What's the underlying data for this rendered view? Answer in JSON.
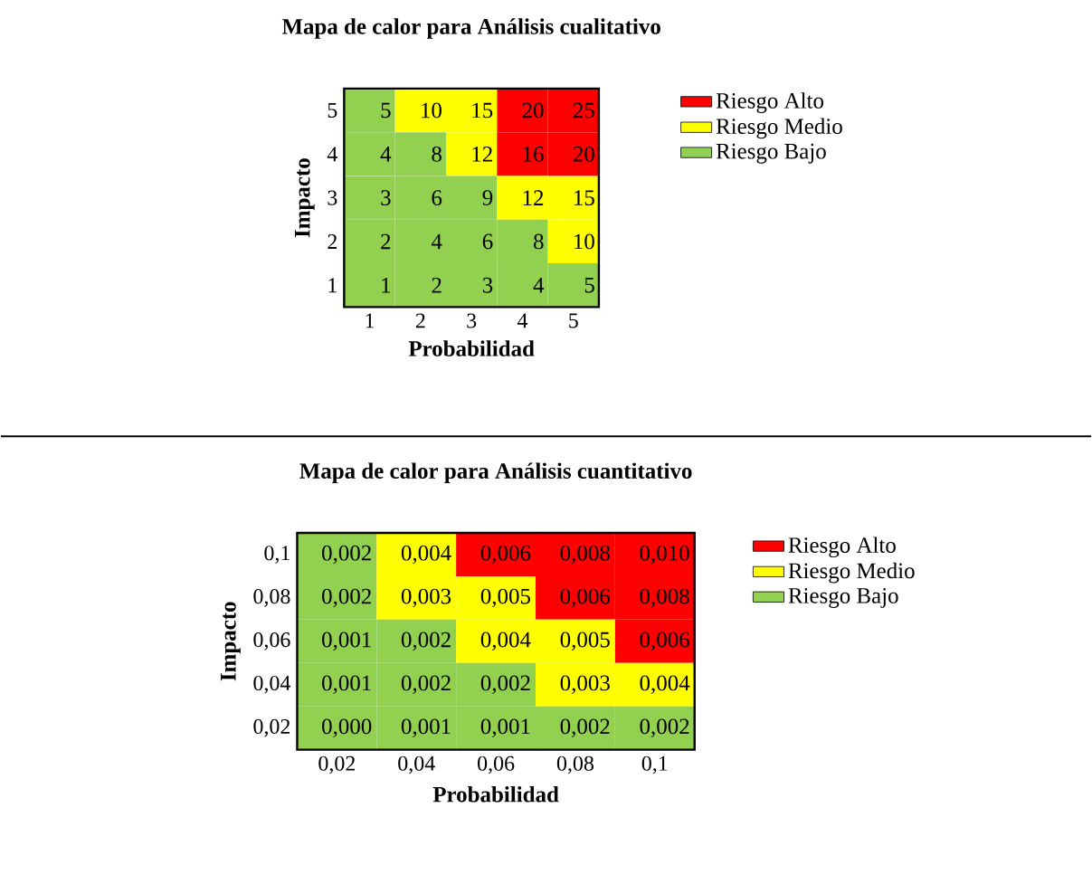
{
  "chart_data": [
    {
      "type": "heatmap",
      "title": "Mapa de calor para Análisis cualitativo",
      "xlabel": "Probabilidad",
      "ylabel": "Impacto",
      "categories": [
        "1",
        "2",
        "3",
        "4",
        "5"
      ],
      "y_categories": [
        "5",
        "4",
        "3",
        "2",
        "1"
      ],
      "cells": [
        [
          5,
          10,
          15,
          20,
          25
        ],
        [
          4,
          8,
          12,
          16,
          20
        ],
        [
          3,
          6,
          9,
          12,
          15
        ],
        [
          2,
          4,
          6,
          8,
          10
        ],
        [
          1,
          2,
          3,
          4,
          5
        ]
      ],
      "cell_labels": [
        [
          "5",
          "10",
          "15",
          "20",
          "25"
        ],
        [
          "4",
          "8",
          "12",
          "16",
          "20"
        ],
        [
          "3",
          "6",
          "9",
          "12",
          "15"
        ],
        [
          "2",
          "4",
          "6",
          "8",
          "10"
        ],
        [
          "1",
          "2",
          "3",
          "4",
          "5"
        ]
      ],
      "colors": [
        [
          "#92d050",
          "#ffff00",
          "#ffff00",
          "#ff0000",
          "#ff0000"
        ],
        [
          "#92d050",
          "#92d050",
          "#ffff00",
          "#ff0000",
          "#ff0000"
        ],
        [
          "#92d050",
          "#92d050",
          "#92d050",
          "#ffff00",
          "#ffff00"
        ],
        [
          "#92d050",
          "#92d050",
          "#92d050",
          "#92d050",
          "#ffff00"
        ],
        [
          "#92d050",
          "#92d050",
          "#92d050",
          "#92d050",
          "#92d050"
        ]
      ],
      "series": [
        {
          "name": "Riesgo Alto",
          "color": "#ff0000",
          "values": [
            null,
            null,
            null,
            null,
            null
          ]
        },
        {
          "name": "Riesgo Medio",
          "color": "#ffff00",
          "values": [
            null,
            null,
            null,
            null,
            null
          ]
        },
        {
          "name": "Riesgo Bajo",
          "color": "#92d050",
          "values": [
            null,
            null,
            null,
            null,
            null
          ]
        }
      ],
      "legend": "right"
    },
    {
      "type": "heatmap",
      "title": "Mapa de calor para Análisis cuantitativo",
      "xlabel": "Probabilidad",
      "ylabel": "Impacto",
      "categories": [
        "0,02",
        "0,04",
        "0,06",
        "0,08",
        "0,1"
      ],
      "y_categories": [
        "0,1",
        "0,08",
        "0,06",
        "0,04",
        "0,02"
      ],
      "cells": [
        [
          0.002,
          0.004,
          0.006,
          0.008,
          0.01
        ],
        [
          0.002,
          0.003,
          0.005,
          0.006,
          0.008
        ],
        [
          0.001,
          0.002,
          0.004,
          0.005,
          0.006
        ],
        [
          0.001,
          0.002,
          0.002,
          0.003,
          0.004
        ],
        [
          0.0,
          0.001,
          0.001,
          0.002,
          0.002
        ]
      ],
      "cell_labels": [
        [
          "0,002",
          "0,004",
          "0,006",
          "0,008",
          "0,010"
        ],
        [
          "0,002",
          "0,003",
          "0,005",
          "0,006",
          "0,008"
        ],
        [
          "0,001",
          "0,002",
          "0,004",
          "0,005",
          "0,006"
        ],
        [
          "0,001",
          "0,002",
          "0,002",
          "0,003",
          "0,004"
        ],
        [
          "0,000",
          "0,001",
          "0,001",
          "0,002",
          "0,002"
        ]
      ],
      "colors": [
        [
          "#92d050",
          "#ffff00",
          "#ff0000",
          "#ff0000",
          "#ff0000"
        ],
        [
          "#92d050",
          "#ffff00",
          "#ffff00",
          "#ff0000",
          "#ff0000"
        ],
        [
          "#92d050",
          "#92d050",
          "#ffff00",
          "#ffff00",
          "#ff0000"
        ],
        [
          "#92d050",
          "#92d050",
          "#92d050",
          "#ffff00",
          "#ffff00"
        ],
        [
          "#92d050",
          "#92d050",
          "#92d050",
          "#92d050",
          "#92d050"
        ]
      ],
      "series": [
        {
          "name": "Riesgo Alto",
          "color": "#ff0000",
          "values": [
            null,
            null,
            null,
            null,
            null
          ]
        },
        {
          "name": "Riesgo Medio",
          "color": "#ffff00",
          "values": [
            null,
            null,
            null,
            null,
            null
          ]
        },
        {
          "name": "Riesgo Bajo",
          "color": "#92d050",
          "values": [
            null,
            null,
            null,
            null,
            null
          ]
        }
      ],
      "legend": "right"
    }
  ]
}
